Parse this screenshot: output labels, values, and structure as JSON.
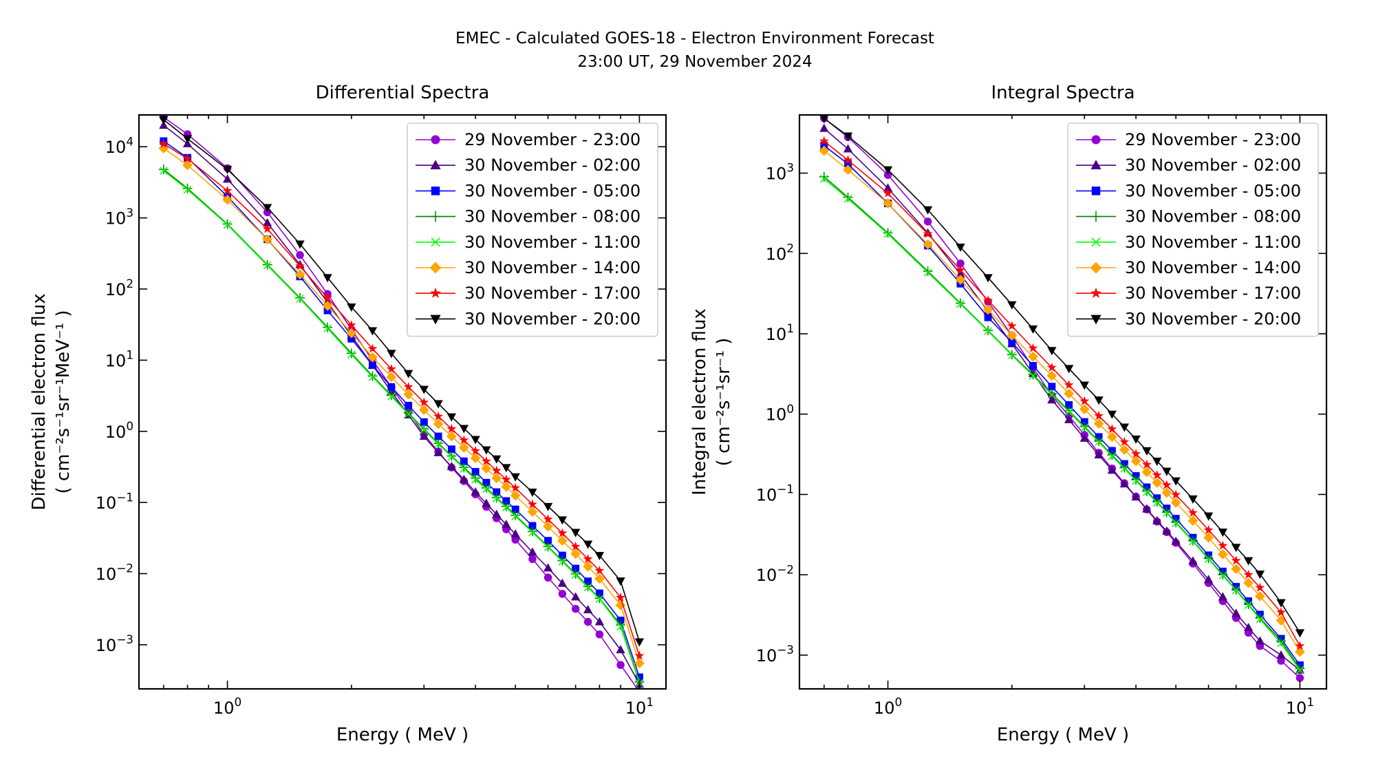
{
  "figure": {
    "title_line1": "EMEC - Calculated GOES-18 - Electron Environment Forecast",
    "title_line2": "23:00 UT, 29 November 2024"
  },
  "legend_labels": [
    "29 November - 23:00",
    "30 November - 02:00",
    "30 November - 05:00",
    "30 November - 08:00",
    "30 November - 11:00",
    "30 November - 14:00",
    "30 November - 17:00",
    "30 November - 20:00"
  ],
  "series_styles": [
    {
      "color": "#9400d3",
      "marker": "circle"
    },
    {
      "color": "#4b0082",
      "marker": "triangle-up"
    },
    {
      "color": "#0000ff",
      "marker": "square"
    },
    {
      "color": "#008000",
      "marker": "plus"
    },
    {
      "color": "#00ff00",
      "marker": "x"
    },
    {
      "color": "#ffa500",
      "marker": "diamond"
    },
    {
      "color": "#ff0000",
      "marker": "star"
    },
    {
      "color": "#000000",
      "marker": "triangle-down"
    }
  ],
  "chart_data": [
    {
      "type": "line",
      "title": "Differential Spectra",
      "xlabel": "Energy ( MeV )",
      "ylabel": "Differential electron flux",
      "ylabel_unit": "( cm⁻²s⁻¹sr⁻¹MeV⁻¹ )",
      "xscale": "log",
      "yscale": "log",
      "xlim": [
        0.61,
        11.6
      ],
      "ylim": [
        0.00024,
        28000
      ],
      "xtick_labels": [
        {
          "base": "10",
          "exp": "0"
        },
        {
          "base": "10",
          "exp": "1"
        }
      ],
      "ytick_labels": [
        {
          "base": "10",
          "exp": "−3"
        },
        {
          "base": "10",
          "exp": "−2"
        },
        {
          "base": "10",
          "exp": "−1"
        },
        {
          "base": "10",
          "exp": "0"
        },
        {
          "base": "10",
          "exp": "1"
        },
        {
          "base": "10",
          "exp": "2"
        },
        {
          "base": "10",
          "exp": "3"
        },
        {
          "base": "10",
          "exp": "4"
        }
      ],
      "legend_position": "upper right",
      "x": [
        0.7,
        0.8,
        1.0,
        1.25,
        1.5,
        1.75,
        2.0,
        2.25,
        2.5,
        2.75,
        3.0,
        3.25,
        3.5,
        3.75,
        4.0,
        4.25,
        4.5,
        4.75,
        5.0,
        5.5,
        6.0,
        6.5,
        7.0,
        7.5,
        8.0,
        9.0,
        10.0
      ],
      "series": [
        {
          "name": "29 November - 23:00",
          "values": [
            26000,
            15000,
            5000,
            1200,
            300,
            85,
            27,
            10,
            4.2,
            1.9,
            0.9,
            0.52,
            0.31,
            0.2,
            0.13,
            0.087,
            0.06,
            0.042,
            0.03,
            0.016,
            0.0088,
            0.0052,
            0.0032,
            0.0021,
            0.0014,
            0.00052,
            0.00022
          ]
        },
        {
          "name": "30 November - 02:00",
          "values": [
            20000,
            11000,
            3500,
            850,
            220,
            65,
            22,
            8.5,
            3.6,
            1.7,
            0.85,
            0.5,
            0.32,
            0.21,
            0.14,
            0.097,
            0.068,
            0.049,
            0.036,
            0.02,
            0.012,
            0.0073,
            0.0047,
            0.0031,
            0.0021,
            0.00085,
            0.00028
          ]
        },
        {
          "name": "30 November - 05:00",
          "values": [
            12000,
            7000,
            2000,
            500,
            150,
            50,
            20,
            8.5,
            4.2,
            2.3,
            1.35,
            0.85,
            0.56,
            0.38,
            0.27,
            0.19,
            0.14,
            0.105,
            0.08,
            0.047,
            0.029,
            0.018,
            0.0118,
            0.0078,
            0.0053,
            0.0022,
            0.00035
          ]
        },
        {
          "name": "30 November - 08:00",
          "values": [
            4800,
            2600,
            820,
            220,
            75,
            29,
            12.5,
            6.0,
            3.2,
            1.8,
            1.08,
            0.68,
            0.45,
            0.31,
            0.22,
            0.16,
            0.117,
            0.088,
            0.066,
            0.039,
            0.024,
            0.0152,
            0.0099,
            0.0066,
            0.0045,
            0.0019,
            0.0003
          ]
        },
        {
          "name": "30 November - 11:00",
          "values": [
            4600,
            2500,
            800,
            215,
            73,
            28,
            12,
            5.8,
            3.1,
            1.75,
            1.05,
            0.66,
            0.44,
            0.3,
            0.21,
            0.155,
            0.114,
            0.085,
            0.064,
            0.038,
            0.0235,
            0.0148,
            0.0096,
            0.0064,
            0.0044,
            0.0018,
            0.00029
          ]
        },
        {
          "name": "30 November - 14:00",
          "values": [
            9500,
            5500,
            1800,
            500,
            160,
            58,
            24,
            11,
            5.8,
            3.3,
            2.0,
            1.27,
            0.85,
            0.59,
            0.42,
            0.3,
            0.22,
            0.166,
            0.125,
            0.074,
            0.046,
            0.029,
            0.019,
            0.0126,
            0.0085,
            0.0036,
            0.00055
          ]
        },
        {
          "name": "30 November - 17:00",
          "values": [
            11000,
            6800,
            2400,
            700,
            210,
            75,
            31,
            14.5,
            7.5,
            4.2,
            2.55,
            1.62,
            1.08,
            0.75,
            0.53,
            0.38,
            0.28,
            0.21,
            0.16,
            0.094,
            0.058,
            0.037,
            0.024,
            0.016,
            0.011,
            0.0046,
            0.0007
          ]
        },
        {
          "name": "30 November - 20:00",
          "values": [
            24000,
            13000,
            4800,
            1400,
            430,
            145,
            56,
            26,
            12.5,
            6.5,
            3.9,
            2.45,
            1.6,
            1.1,
            0.77,
            0.55,
            0.41,
            0.31,
            0.23,
            0.14,
            0.088,
            0.057,
            0.038,
            0.026,
            0.018,
            0.0079,
            0.0011
          ]
        }
      ]
    },
    {
      "type": "line",
      "title": "Integral Spectra",
      "xlabel": "Energy ( MeV )",
      "ylabel": "Integral electron flux",
      "ylabel_unit": "( cm⁻²s⁻¹sr⁻¹ )",
      "xscale": "log",
      "yscale": "log",
      "xlim": [
        0.61,
        11.6
      ],
      "ylim": [
        0.00038,
        5300
      ],
      "xtick_labels": [
        {
          "base": "10",
          "exp": "0"
        },
        {
          "base": "10",
          "exp": "1"
        }
      ],
      "ytick_labels": [
        {
          "base": "10",
          "exp": "−3"
        },
        {
          "base": "10",
          "exp": "−2"
        },
        {
          "base": "10",
          "exp": "−1"
        },
        {
          "base": "10",
          "exp": "0"
        },
        {
          "base": "10",
          "exp": "1"
        },
        {
          "base": "10",
          "exp": "2"
        },
        {
          "base": "10",
          "exp": "3"
        }
      ],
      "legend_position": "upper right",
      "x": [
        0.7,
        0.8,
        1.0,
        1.25,
        1.5,
        1.75,
        2.0,
        2.25,
        2.5,
        2.75,
        3.0,
        3.25,
        3.5,
        3.75,
        4.0,
        4.25,
        4.5,
        4.75,
        5.0,
        5.5,
        6.0,
        6.5,
        7.0,
        7.5,
        8.0,
        9.0,
        10.0
      ],
      "series": [
        {
          "name": "29 November - 23:00",
          "values": [
            4800,
            2800,
            950,
            250,
            75,
            25,
            9.5,
            3.8,
            1.7,
            0.95,
            0.55,
            0.33,
            0.21,
            0.138,
            0.094,
            0.065,
            0.046,
            0.034,
            0.025,
            0.0138,
            0.0079,
            0.0047,
            0.0029,
            0.0019,
            0.0013,
            0.00085,
            0.00052
          ]
        },
        {
          "name": "30 November - 02:00",
          "values": [
            3600,
            2000,
            650,
            180,
            55,
            19,
            7.5,
            3.2,
            1.5,
            0.85,
            0.5,
            0.31,
            0.2,
            0.135,
            0.093,
            0.066,
            0.047,
            0.035,
            0.026,
            0.0148,
            0.0087,
            0.0053,
            0.0033,
            0.0022,
            0.0015,
            0.001,
            0.00065
          ]
        },
        {
          "name": "30 November - 05:00",
          "values": [
            2200,
            1300,
            420,
            125,
            42,
            16,
            7.8,
            4.0,
            2.2,
            1.3,
            0.8,
            0.52,
            0.35,
            0.24,
            0.17,
            0.123,
            0.09,
            0.067,
            0.05,
            0.029,
            0.0175,
            0.011,
            0.0071,
            0.0047,
            0.0032,
            0.0016,
            0.00075
          ]
        },
        {
          "name": "30 November - 08:00",
          "values": [
            900,
            500,
            180,
            60,
            24,
            11,
            5.5,
            3.1,
            1.8,
            1.1,
            0.7,
            0.46,
            0.31,
            0.215,
            0.152,
            0.11,
            0.081,
            0.06,
            0.045,
            0.0265,
            0.016,
            0.01,
            0.0065,
            0.0043,
            0.0029,
            0.0015,
            0.00068
          ]
        },
        {
          "name": "30 November - 11:00",
          "values": [
            850,
            480,
            175,
            58,
            23.5,
            10.8,
            5.4,
            3.0,
            1.75,
            1.07,
            0.68,
            0.45,
            0.3,
            0.21,
            0.148,
            0.107,
            0.079,
            0.059,
            0.044,
            0.026,
            0.0157,
            0.0098,
            0.0064,
            0.0042,
            0.0028,
            0.0014,
            0.00065
          ]
        },
        {
          "name": "30 November - 14:00",
          "values": [
            1900,
            1100,
            420,
            130,
            47,
            20,
            9.5,
            5.2,
            3.0,
            1.8,
            1.15,
            0.76,
            0.52,
            0.36,
            0.26,
            0.19,
            0.14,
            0.105,
            0.079,
            0.047,
            0.029,
            0.018,
            0.0118,
            0.0079,
            0.0054,
            0.0027,
            0.0011
          ]
        },
        {
          "name": "30 November - 17:00",
          "values": [
            2500,
            1450,
            560,
            175,
            62,
            26,
            12.5,
            6.6,
            3.8,
            2.3,
            1.45,
            0.95,
            0.65,
            0.45,
            0.32,
            0.235,
            0.174,
            0.131,
            0.099,
            0.059,
            0.036,
            0.023,
            0.015,
            0.01,
            0.0069,
            0.0034,
            0.0013
          ]
        },
        {
          "name": "30 November - 20:00",
          "values": [
            4800,
            2900,
            1100,
            350,
            120,
            50,
            23,
            11.5,
            6.2,
            3.7,
            2.3,
            1.5,
            1.0,
            0.69,
            0.49,
            0.35,
            0.26,
            0.195,
            0.148,
            0.088,
            0.054,
            0.034,
            0.022,
            0.015,
            0.0102,
            0.0045,
            0.0019
          ]
        }
      ]
    }
  ]
}
